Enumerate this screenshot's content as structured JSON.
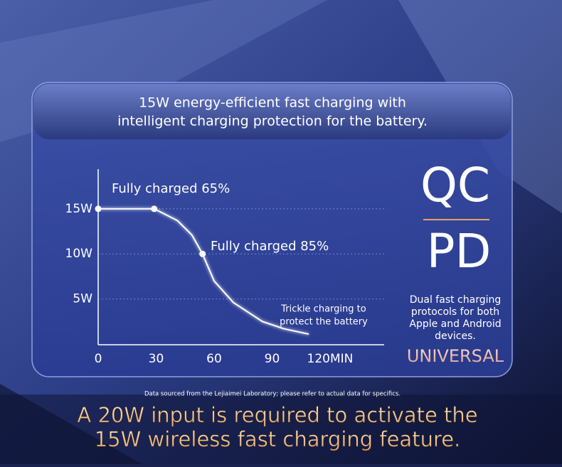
{
  "header": [
    "15W energy-efficient fast charging with",
    "intelligent charging protection for the battery."
  ],
  "chart_data": {
    "type": "line",
    "x": [
      0,
      29,
      41,
      48.5,
      54,
      60,
      70,
      85,
      96,
      109
    ],
    "values": [
      15,
      15,
      13.7,
      12.1,
      10,
      7,
      4.6,
      2.5,
      1.7,
      1.1
    ],
    "color": "#ffffff",
    "xlim": [
      0,
      148
    ],
    "ylim": [
      0,
      19.4
    ],
    "xticks": [
      0,
      30,
      60,
      90,
      {
        "value": 120,
        "label": "120MIN"
      }
    ],
    "yticks": [
      {
        "value": 5,
        "label": "5W"
      },
      {
        "value": 10,
        "label": "10W"
      },
      {
        "value": 15,
        "label": "15W"
      }
    ],
    "grid": true,
    "annotations": [
      "Fully charged 65%",
      "Fully charged 85%",
      "Trickle charging to",
      "protect the battery"
    ]
  },
  "side": {
    "logos": [
      "QC",
      "PD"
    ],
    "description": [
      "Dual fast charging",
      "protocols for both",
      "Apple and Android",
      "devices."
    ],
    "tagline": "UNIVERSAL"
  },
  "footnote": "Data sourced from the Lejiaimei Laboratory; please refer to actual data for specifics.",
  "banner": [
    "A 20W input is required to activate the",
    "15W wireless fast charging feature."
  ]
}
